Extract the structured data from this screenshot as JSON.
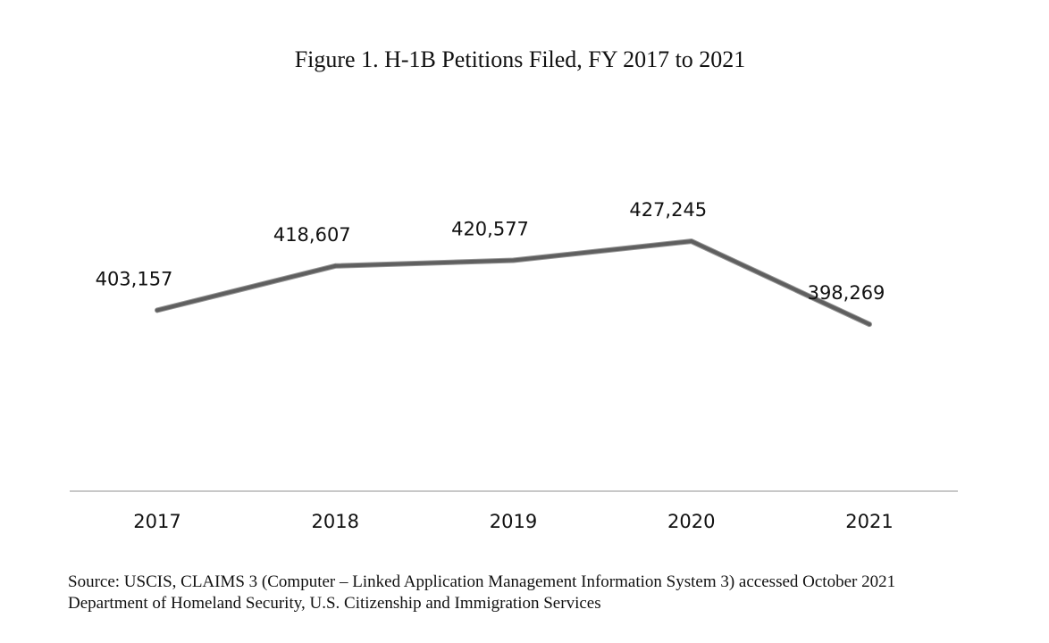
{
  "chart_data": {
    "type": "line",
    "title": "Figure 1. H-1B Petitions Filed, FY 2017 to 2021",
    "categories": [
      "2017",
      "2018",
      "2019",
      "2020",
      "2021"
    ],
    "series": [
      {
        "values": [
          403157,
          418607,
          420577,
          427245,
          398269
        ],
        "labels": [
          "403,157",
          "418,607",
          "420,577",
          "427,245",
          "398,269"
        ],
        "color": "#5f5f5f"
      }
    ],
    "xlabel": "",
    "ylabel": "",
    "ylim": [
      340000,
      460000
    ],
    "grid": false,
    "legend": "none"
  },
  "source": {
    "line1": "Source: USCIS, CLAIMS 3 (Computer – Linked Application Management Information System 3) accessed October 2021",
    "line2": "Department of Homeland Security, U.S. Citizenship and Immigration Services"
  },
  "colors": {
    "line": "#5f5f5f",
    "axis": "#c8c8c8",
    "text": "#111111"
  }
}
